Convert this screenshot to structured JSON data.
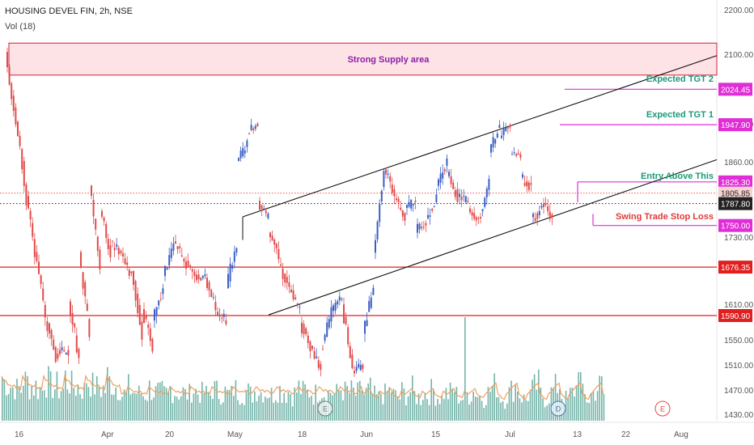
{
  "header": {
    "title": "HOUSING DEVEL FIN, 2h, NSE",
    "volume_label": "Vol (18)"
  },
  "colors": {
    "up": "#3a5fc4",
    "down": "#e24a4a",
    "volume": "#5aa79a",
    "volume_ma": "#f0a060",
    "supply_fill": "#fde3e6",
    "supply_border": "#d0203a",
    "supply_text": "#8b1fa8",
    "target": "#e02ed6",
    "target_text": "#1a9a7a",
    "support": "#e02020",
    "stop_text": "#e03a3a",
    "trend": "#111111",
    "last_price": "#222222",
    "axis_text": "#555555"
  },
  "chart_data": {
    "type": "candlestick",
    "title": "HOUSING DEVEL FIN, 2h, NSE",
    "y_axis": {
      "ticks": [
        "2200.00",
        "2100.00",
        "1950.00",
        "1860.00",
        "1730.00",
        "1610.00",
        "1550.00",
        "1510.00",
        "1470.00",
        "1430.00"
      ],
      "tick_values": [
        2200,
        2100,
        1950,
        1860,
        1730,
        1610,
        1550,
        1510,
        1470,
        1430
      ]
    },
    "x_axis": {
      "ticks": [
        "16",
        "Apr",
        "20",
        "May",
        "18",
        "Jun",
        "15",
        "Jul",
        "13",
        "22",
        "Aug"
      ]
    },
    "price_labels": [
      {
        "text": "2024.45",
        "value": 2024.45,
        "kind": "target"
      },
      {
        "text": "1947.90",
        "value": 1947.9,
        "kind": "target"
      },
      {
        "text": "1825.30",
        "value": 1825.3,
        "kind": "entry"
      },
      {
        "text": "1805.85",
        "value": 1805.85,
        "kind": "current"
      },
      {
        "text": "1787.80",
        "value": 1787.8,
        "kind": "last"
      },
      {
        "text": "1750.00",
        "value": 1750,
        "kind": "stop"
      },
      {
        "text": "1676.35",
        "value": 1676.35,
        "kind": "support"
      },
      {
        "text": "1590.90",
        "value": 1590.9,
        "kind": "support"
      }
    ],
    "annotations": [
      {
        "text": "Strong Supply area",
        "kind": "zone"
      },
      {
        "text": "Expected TGT 2",
        "kind": "target"
      },
      {
        "text": "Expected TGT 1",
        "kind": "target"
      },
      {
        "text": "Entry Above This",
        "kind": "entry"
      },
      {
        "text": "Swing Trade Stop Loss",
        "kind": "stop"
      }
    ],
    "supply_zone": {
      "low": 2055,
      "high": 2125
    },
    "channel": {
      "upper": [
        {
          "x": "May 4",
          "y": 1760
        },
        {
          "x": "Aug 8",
          "y": 2100
        }
      ],
      "lower": [
        {
          "x": "May 13",
          "y": 1590
        },
        {
          "x": "Aug 8",
          "y": 1860
        }
      ]
    },
    "event_markers": [
      "E",
      "D",
      "E"
    ],
    "price_path": [
      [
        2100,
        1950
      ],
      [
        1960,
        1790
      ],
      [
        1800,
        1680
      ],
      [
        1690,
        1560
      ],
      [
        1580,
        1510
      ],
      [
        1530,
        1530
      ],
      [
        1620,
        1520
      ],
      [
        1700,
        1560
      ],
      [
        1820,
        1680
      ],
      [
        1780,
        1700
      ],
      [
        1720,
        1700
      ],
      [
        1700,
        1660
      ],
      [
        1670,
        1560
      ],
      [
        1600,
        1540
      ],
      [
        1580,
        1640
      ],
      [
        1660,
        1720
      ],
      [
        1720,
        1690
      ],
      [
        1690,
        1660
      ],
      [
        1660,
        1660
      ],
      [
        1660,
        1600
      ],
      [
        1600,
        1580
      ],
      [
        1640,
        1720
      ],
      [
        1860,
        1900
      ],
      [
        1930,
        1950
      ],
      [
        1790,
        1760
      ],
      [
        1740,
        1700
      ],
      [
        1680,
        1640
      ],
      [
        1640,
        1600
      ],
      [
        1580,
        1540
      ],
      [
        1540,
        1500
      ],
      [
        1530,
        1600
      ],
      [
        1600,
        1620
      ],
      [
        1610,
        1500
      ],
      [
        1500,
        1510
      ],
      [
        1560,
        1640
      ],
      [
        1700,
        1850
      ],
      [
        1850,
        1800
      ],
      [
        1800,
        1760
      ],
      [
        1780,
        1790
      ],
      [
        1740,
        1760
      ],
      [
        1760,
        1800
      ],
      [
        1820,
        1860
      ],
      [
        1840,
        1800
      ],
      [
        1800,
        1790
      ],
      [
        1780,
        1760
      ],
      [
        1760,
        1820
      ],
      [
        1880,
        1950
      ],
      [
        1920,
        1950
      ],
      [
        1880,
        1880
      ],
      [
        1830,
        1820
      ],
      [
        1760,
        1780
      ],
      [
        1790,
        1760
      ]
    ],
    "volume": [
      [
        0.5,
        0.45,
        0.45,
        0.4,
        0.4,
        0.38,
        0.4,
        0.36,
        0.37,
        0.35
      ],
      [
        0.38,
        0.36,
        0.34,
        0.32,
        0.33,
        0.31,
        0.33,
        0.3,
        0.31,
        0.3
      ],
      [
        0.34,
        0.38,
        0.36,
        0.33,
        0.35,
        0.32,
        0.34,
        0.33,
        0.3,
        0.31
      ],
      [
        0.33,
        0.31,
        0.3,
        0.32,
        0.34,
        0.36,
        0.3,
        0.28,
        0.27,
        0.26
      ],
      [
        0.3,
        0.32,
        0.35,
        0.38,
        0.4,
        0.42,
        0.3,
        0.28,
        0.25,
        0.24
      ]
    ]
  }
}
